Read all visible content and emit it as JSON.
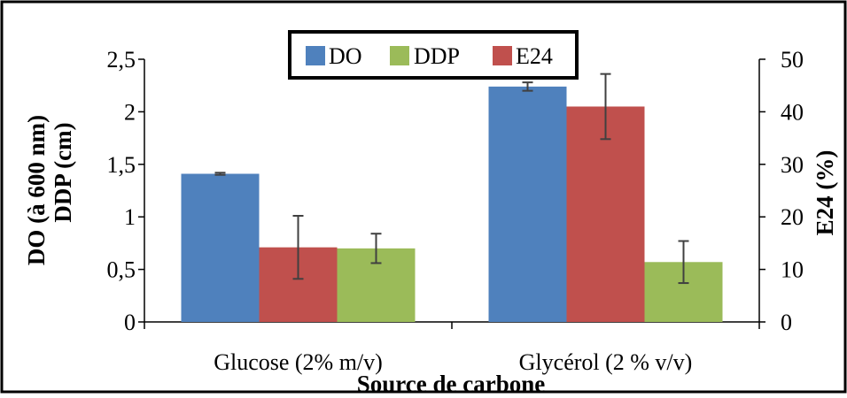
{
  "chart_data": {
    "type": "bar",
    "categories": [
      "Glucose (2% m/v)",
      "Glycérol (2 % v/v)"
    ],
    "xlabel": "Source de carbone",
    "ylabel_left_line1": "DO (à 600 nm)",
    "ylabel_left_line2": "DDP (cm)",
    "ylabel_right": "E24 (%)",
    "ylim_left": [
      0,
      2.5
    ],
    "ylim_right": [
      0,
      50
    ],
    "yticks_left": [
      "0",
      "0,5",
      "1",
      "1,5",
      "2",
      "2,5"
    ],
    "yticks_right": [
      "0",
      "10",
      "20",
      "30",
      "40",
      "50"
    ],
    "legend_position": "top-center",
    "grid": false,
    "series": [
      {
        "name": "DO",
        "axis": "left",
        "color": "#4F81BD",
        "values": [
          1.41,
          2.24
        ],
        "errors": [
          0.01,
          0.04
        ]
      },
      {
        "name": "DDP",
        "axis": "left",
        "color": "#9BBB59",
        "values": [
          0.7,
          0.57
        ],
        "errors": [
          0.14,
          0.2
        ]
      },
      {
        "name": "E24",
        "axis": "right",
        "color": "#C0504D",
        "values": [
          14.2,
          41.0
        ],
        "errors": [
          6.0,
          6.2
        ]
      }
    ],
    "bar_order": [
      [
        "DO",
        "E24",
        "DDP"
      ],
      [
        "DO",
        "E24",
        "DDP"
      ]
    ]
  }
}
